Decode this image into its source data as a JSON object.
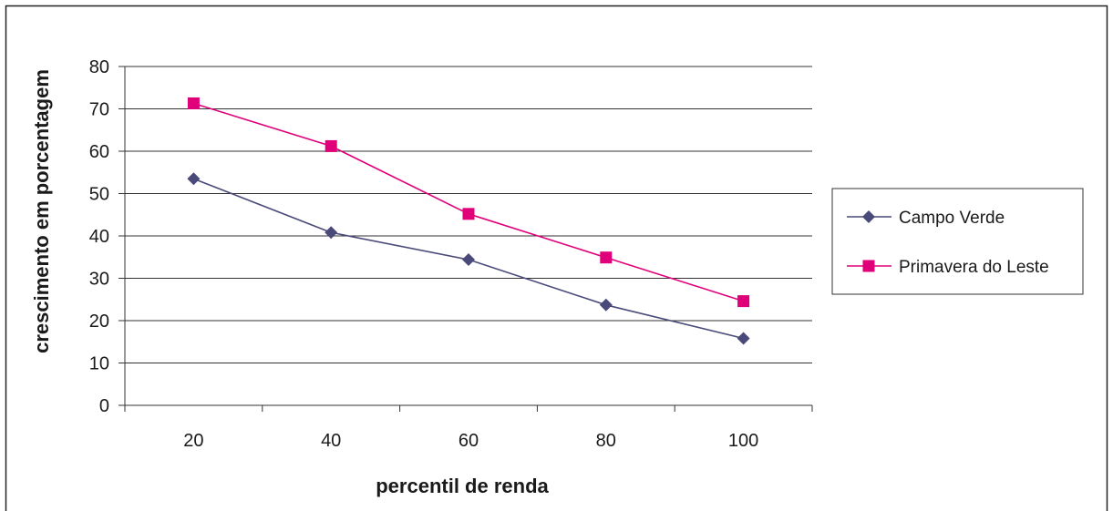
{
  "chart_data": {
    "type": "line",
    "title": "",
    "xlabel": "percentil de renda",
    "ylabel": "crescimento em porcentagem",
    "x": [
      20,
      40,
      60,
      80,
      100
    ],
    "ylim": [
      0,
      80
    ],
    "yticks": [
      0,
      10,
      20,
      30,
      40,
      50,
      60,
      70,
      80
    ],
    "grid": true,
    "legend_position": "right",
    "series": [
      {
        "name": "Campo Verde",
        "values": [
          53.5,
          40.8,
          34.4,
          23.7,
          15.8
        ],
        "color": "#4a4a7a",
        "marker": "diamond"
      },
      {
        "name": "Primavera do Leste",
        "values": [
          71.3,
          61.2,
          45.2,
          34.9,
          24.6
        ],
        "color": "#e0007a",
        "marker": "square"
      }
    ]
  }
}
